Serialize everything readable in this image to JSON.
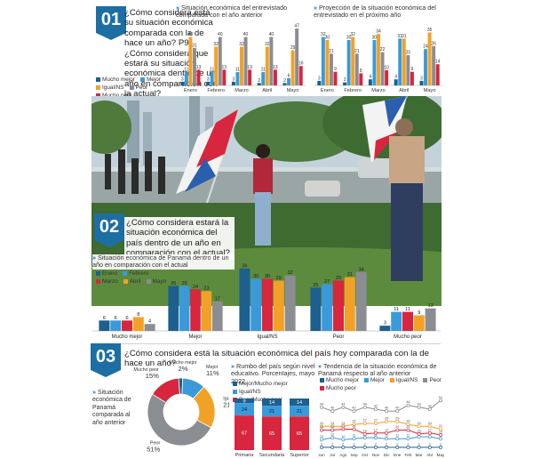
{
  "colors": {
    "mucho_mejor": "#1d5f8f",
    "mejor": "#3a9ad9",
    "igual_ns": "#f2a127",
    "peor": "#8a8d91",
    "mucho_peor": "#d7263d",
    "brand": "#1d6fa3",
    "enero": "#1d5f8f",
    "febrero": "#3a9ad9",
    "marzo": "#d7263d",
    "abril": "#f2a127",
    "mayo": "#8a8d91"
  },
  "section1": {
    "badge": "01",
    "question": "¿Cómo considera está su situación económica comparada con la de hace un año? P9. ¿Cómo considera que estará su situación económica dentro de un año en comparación con la actual?"
  },
  "section2": {
    "badge": "02",
    "question": "¿Cómo considera estará la situación económica del país dentro de un año en comparación con el actual?"
  },
  "section3": {
    "badge": "03",
    "question": "¿Cómo considera está la situación económica del país hoy comparada con la de hace un año?"
  },
  "legend1": [
    "Mucho mejor",
    "Mejor",
    "Igual/NS",
    "Peor",
    "Mucho peor"
  ],
  "legend2": [
    "Enero",
    "Febrero",
    "Marzo",
    "Abril",
    "Mayo"
  ],
  "pie_side_label": "Situación económica de Panamá comparada al año anterior",
  "legend3": [
    "Mejor/Mucho mejor",
    "Igual/NS",
    "Peor/Mucho peor"
  ],
  "legend4": [
    "Mucho mejor",
    "Mejor",
    "Igual/NS",
    "Peor",
    "Mucho peor"
  ],
  "chart_data": [
    {
      "id": "personal_past",
      "type": "bar",
      "title": "Situación económica del entrevistado comparada con el año anterior",
      "categories": [
        "Enero",
        "Febrero",
        "Marzo",
        "Abril",
        "Mayo"
      ],
      "series": [
        {
          "name": "Mucho mejor",
          "values": [
            3,
            3,
            3,
            2,
            2
          ]
        },
        {
          "name": "Mejor",
          "values": [
            11,
            11,
            11,
            11,
            6
          ]
        },
        {
          "name": "Igual/NS",
          "values": [
            40,
            32,
            32,
            32,
            29
          ]
        },
        {
          "name": "Peor",
          "values": [
            31,
            40,
            40,
            40,
            47
          ]
        },
        {
          "name": "Mucho peor",
          "values": [
            13,
            13,
            13,
            13,
            16
          ]
        }
      ]
    },
    {
      "id": "personal_future",
      "type": "bar",
      "title": "Proyección de la situación económica del entrevistado en el próximo año",
      "categories": [
        "Enero",
        "Febrero",
        "Marzo",
        "Abril",
        "Mayo"
      ],
      "series": [
        {
          "name": "Mucho mejor",
          "values": [
            3,
            2,
            4,
            4,
            3
          ]
        },
        {
          "name": "Mejor",
          "values": [
            32,
            30,
            30,
            31,
            24
          ]
        },
        {
          "name": "Igual/NS",
          "values": [
            30,
            32,
            34,
            31,
            35
          ]
        },
        {
          "name": "Peor",
          "values": [
            21,
            21,
            22,
            20,
            26
          ]
        },
        {
          "name": "Mucho peor",
          "values": [
            9,
            8,
            10,
            9,
            14
          ]
        }
      ]
    },
    {
      "id": "country_future",
      "type": "bar",
      "title": "Situación económica de Panamá dentro de un año en comparación con el actual",
      "categories": [
        "Mucho mejor",
        "Mejor",
        "Igual/NS",
        "Peor",
        "Mucho peor"
      ],
      "series": [
        {
          "name": "Enero",
          "values": [
            6,
            26,
            36,
            25,
            3
          ]
        },
        {
          "name": "Febrero",
          "values": [
            6,
            26,
            30,
            27,
            11
          ]
        },
        {
          "name": "Marzo",
          "values": [
            6,
            24,
            30,
            29,
            11
          ]
        },
        {
          "name": "Abril",
          "values": [
            8,
            23,
            29,
            31,
            9
          ]
        },
        {
          "name": "Mayo",
          "values": [
            4,
            17,
            32,
            34,
            13
          ]
        }
      ]
    },
    {
      "id": "country_past_pie",
      "type": "pie",
      "title": "Situación económica de Panamá comparada al año anterior",
      "labels": [
        "Mucho mejor",
        "Mejor",
        "Igual/NS",
        "Peor",
        "Mucho peor"
      ],
      "values": [
        2,
        11,
        21,
        51,
        15
      ],
      "display": [
        "2%",
        "11%",
        "21%",
        "51%",
        "15%"
      ]
    },
    {
      "id": "education",
      "type": "bar",
      "stacked": true,
      "title": "Rumbo del país según nivel educativo. Porcentajes, mayo 2022",
      "categories": [
        "Primaria",
        "Secundaria",
        "Superior"
      ],
      "series": [
        {
          "name": "Mejor/Mucho mejor",
          "values": [
            9,
            14,
            14
          ]
        },
        {
          "name": "Igual/NS",
          "values": [
            24,
            21,
            21
          ]
        },
        {
          "name": "Peor/Mucho peor",
          "values": [
            67,
            65,
            65
          ]
        }
      ]
    },
    {
      "id": "trend",
      "type": "line",
      "title": "Tendencia de la situación económica de Panamá respecto al año anterior",
      "x": [
        "Jun",
        "Jul",
        "Ago",
        "Sep",
        "Oct",
        "Nov",
        "Dic",
        "Ene",
        "Feb",
        "Mar",
        "Abr",
        "May"
      ],
      "series": [
        {
          "name": "Mucho mejor",
          "values": [
            2,
            2,
            2,
            2,
            2,
            2,
            2,
            2,
            2,
            2,
            2,
            2
          ]
        },
        {
          "name": "Mejor",
          "values": [
            10,
            12,
            10,
            11,
            12,
            12,
            11,
            11,
            11,
            13,
            13,
            11
          ]
        },
        {
          "name": "Igual/NS",
          "values": [
            24,
            24,
            24,
            26,
            27,
            27,
            29,
            29,
            26,
            24,
            24,
            21
          ]
        },
        {
          "name": "Peor",
          "values": [
            44,
            40,
            44,
            40,
            44,
            42,
            40,
            40,
            46,
            44,
            42,
            51
          ]
        },
        {
          "name": "Mucho peor",
          "values": [
            20,
            20,
            21,
            21,
            16,
            17,
            17,
            20,
            20,
            16,
            17,
            15
          ]
        }
      ]
    }
  ]
}
